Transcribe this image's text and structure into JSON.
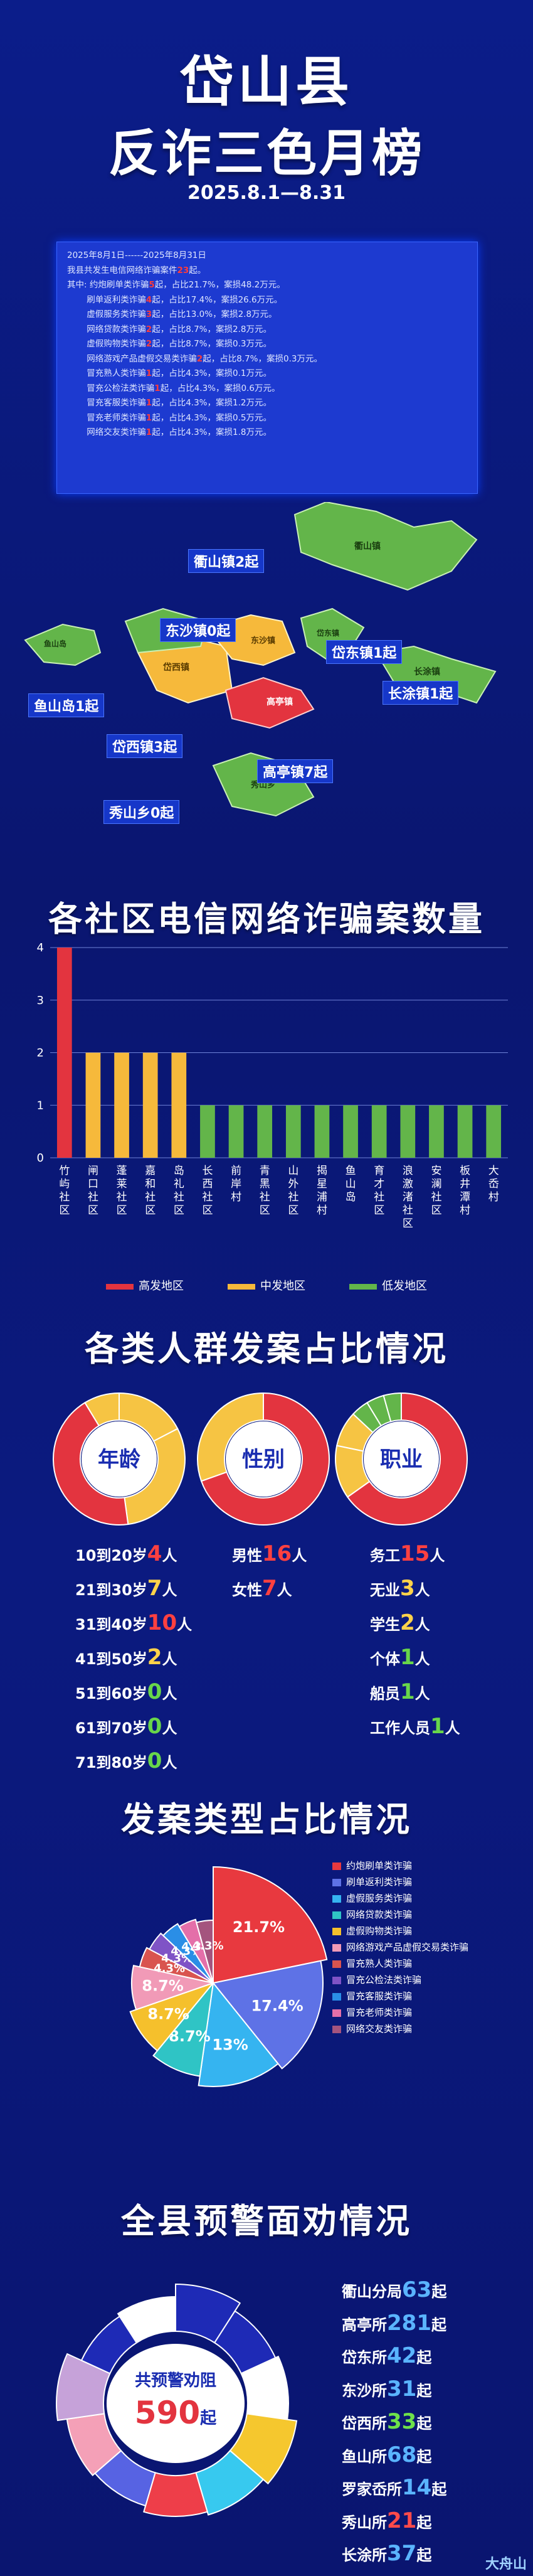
{
  "header": {
    "title_line1": "岱山县",
    "title_line2": "反诈三色月榜",
    "date_range": "2025.8.1—8.31"
  },
  "summary_lines": [
    {
      "pre": "2025年8月1日------2025年8月31日",
      "hl": "",
      "post": ""
    },
    {
      "pre": "我县共发生电信网络诈骗案件",
      "hl": "23",
      "post": "起。"
    },
    {
      "pre": "其中: 约炮刷单类诈骗",
      "hl": "5",
      "post": "起，占比21.7%，案损48.2万元。"
    },
    {
      "pre": "　　 刷单返利类诈骗",
      "hl": "4",
      "post": "起，占比17.4%，案损26.6万元。"
    },
    {
      "pre": "　　 虚假服务类诈骗",
      "hl": "3",
      "post": "起，占比13.0%，案损2.8万元。"
    },
    {
      "pre": "　　 网络贷款类诈骗",
      "hl": "2",
      "post": "起，占比8.7%，案损2.8万元。"
    },
    {
      "pre": "　　 虚假购物类诈骗",
      "hl": "2",
      "post": "起，占比8.7%，案损0.3万元。"
    },
    {
      "pre": "　　 网络游戏产品虚假交易类诈骗",
      "hl": "2",
      "post": "起，占比8.7%，案损0.3万元。"
    },
    {
      "pre": "　　 冒充熟人类诈骗",
      "hl": "1",
      "post": "起，占比4.3%，案损0.1万元。"
    },
    {
      "pre": "　　 冒充公检法类诈骗",
      "hl": "1",
      "post": "起，占比4.3%，案损0.6万元。"
    },
    {
      "pre": "　　 冒充客服类诈骗",
      "hl": "1",
      "post": "起，占比4.3%，案损1.2万元。"
    },
    {
      "pre": "　　 冒充老师类诈骗",
      "hl": "1",
      "post": "起，占比4.3%，案损0.5万元。"
    },
    {
      "pre": "　　 网络交友类诈骗",
      "hl": "1",
      "post": "起，占比4.3%，案损1.8万元。"
    }
  ],
  "map": {
    "callouts": [
      "衢山镇2起",
      "东沙镇0起",
      "岱东镇1起",
      "鱼山岛1起",
      "长涂镇1起",
      "岱西镇3起",
      "高亭镇7起",
      "秀山乡0起"
    ],
    "island_labels": [
      "衢山镇",
      "岱东镇",
      "长涂镇",
      "岱西镇",
      "高亭镇",
      "东沙镇",
      "秀山乡",
      "鱼山岛"
    ]
  },
  "sections": {
    "community_title": "各社区电信网络诈骗案数量",
    "crowd_title": "各类人群发案占比情况",
    "type_title": "发案类型占比情况",
    "warning_title": "全县预警面劝情况"
  },
  "chart_data": [
    {
      "type": "bar",
      "title": "各社区电信网络诈骗案数量",
      "categories": [
        "竹屿社区",
        "闸口社区",
        "蓬莱社区",
        "嘉和社区",
        "岛礼社区",
        "长西社区",
        "前岸村",
        "青黑社区",
        "山外社区",
        "揭星浦村",
        "鱼山岛",
        "育才社区",
        "浪激渚社区",
        "安澜社区",
        "板井潭村",
        "大岙村"
      ],
      "values": [
        4,
        2,
        2,
        2,
        2,
        1,
        1,
        1,
        1,
        1,
        1,
        1,
        1,
        1,
        1,
        1
      ],
      "level": [
        "high",
        "mid",
        "mid",
        "mid",
        "mid",
        "low",
        "low",
        "low",
        "low",
        "low",
        "low",
        "low",
        "low",
        "low",
        "low",
        "low"
      ],
      "ylim": [
        0,
        4
      ],
      "yticks": [
        0,
        1,
        2,
        3,
        4
      ],
      "legend": [
        "高发地区",
        "中发地区",
        "低发地区"
      ],
      "legend_colors": [
        "#e3343f",
        "#f6b93b",
        "#63b54a"
      ],
      "grid": true
    },
    {
      "type": "pie",
      "title": "发案类型占比情况",
      "labels": [
        "约炮刷单类诈骗",
        "刷单返利类诈骗",
        "虚假服务类诈骗",
        "网络贷款类诈骗",
        "虚假购物类诈骗",
        "网络游戏产品虚假交易类诈骗",
        "冒充熟人类诈骗",
        "冒充公检法类诈骗",
        "冒充客服类诈骗",
        "冒充老师类诈骗",
        "网络交友类诈骗"
      ],
      "values": [
        21.7,
        17.4,
        13.0,
        8.7,
        8.7,
        8.7,
        4.3,
        4.3,
        4.3,
        4.3,
        4.3
      ],
      "value_labels": [
        "21.7%",
        "17.4%",
        "13%",
        "8.7%",
        "8.7%",
        "8.7%",
        "4.3%",
        "4.3%",
        "4.3%",
        "4.3%",
        "4.3%"
      ],
      "colors": [
        "#e8393f",
        "#5e72e6",
        "#35b4f0",
        "#2fc4c5",
        "#f5c02c",
        "#f19ab7",
        "#d9544f",
        "#7f53c6",
        "#2a8ee6",
        "#e46fa9",
        "#a4547e"
      ]
    },
    {
      "type": "pie",
      "title": "全县预警面劝情况",
      "labels": [
        "衢山分局",
        "高亭所",
        "岱东所",
        "东沙所",
        "岱西所",
        "鱼山所",
        "罗家岙所",
        "秀山所",
        "长涂所"
      ],
      "values": [
        63,
        281,
        42,
        31,
        33,
        68,
        14,
        21,
        37
      ],
      "total": 590
    }
  ],
  "crowd": {
    "donuts": [
      {
        "label": "年龄",
        "values": [
          4,
          7,
          10,
          2,
          0,
          0,
          0
        ],
        "colors": [
          "#f6c443",
          "#f6c443",
          "#e3343f",
          "#f6c443",
          "#f6c443",
          "#f6c443",
          "#f6c443"
        ]
      },
      {
        "label": "性别",
        "values": [
          16,
          7
        ],
        "colors": [
          "#e3343f",
          "#f6c443"
        ]
      },
      {
        "label": "职业",
        "values": [
          15,
          3,
          2,
          1,
          1,
          1
        ],
        "colors": [
          "#e3343f",
          "#f6c443",
          "#f6c443",
          "#63b54a",
          "#63b54a",
          "#63b54a"
        ]
      }
    ],
    "age": [
      {
        "label": "10到20岁",
        "num": "4",
        "unit": "人",
        "c": "r"
      },
      {
        "label": "21到30岁",
        "num": "7",
        "unit": "人",
        "c": "y"
      },
      {
        "label": "31到40岁",
        "num": "10",
        "unit": "人",
        "c": "r"
      },
      {
        "label": "41到50岁",
        "num": "2",
        "unit": "人",
        "c": "y"
      },
      {
        "label": "51到60岁",
        "num": "0",
        "unit": "人",
        "c": "g"
      },
      {
        "label": "61到70岁",
        "num": "0",
        "unit": "人",
        "c": "g"
      },
      {
        "label": "71到80岁",
        "num": "0",
        "unit": "人",
        "c": "g"
      }
    ],
    "gender": [
      {
        "label": "男性",
        "num": "16",
        "unit": "人",
        "c": "r"
      },
      {
        "label": "女性",
        "num": "7",
        "unit": "人",
        "c": "r"
      }
    ],
    "job": [
      {
        "label": "务工",
        "num": "15",
        "unit": "人",
        "c": "r"
      },
      {
        "label": "无业",
        "num": "3",
        "unit": "人",
        "c": "y"
      },
      {
        "label": "学生",
        "num": "2",
        "unit": "人",
        "c": "y"
      },
      {
        "label": "个体",
        "num": "1",
        "unit": "人",
        "c": "g"
      },
      {
        "label": "船员",
        "num": "1",
        "unit": "人",
        "c": "g"
      },
      {
        "label": "工作人员",
        "num": "1",
        "unit": "人",
        "c": "g"
      }
    ]
  },
  "warning": {
    "center_label": "共预警劝阻",
    "center_num": "590",
    "center_unit": "起",
    "stations": [
      {
        "name": "衢山分局",
        "num": "63",
        "unit": "起",
        "c": "b"
      },
      {
        "name": "高亭所",
        "num": "281",
        "unit": "起",
        "c": "b"
      },
      {
        "name": "岱东所",
        "num": "42",
        "unit": "起",
        "c": "b"
      },
      {
        "name": "东沙所",
        "num": "31",
        "unit": "起",
        "c": "b"
      },
      {
        "name": "岱西所",
        "num": "33",
        "unit": "起",
        "c": "g"
      },
      {
        "name": "鱼山所",
        "num": "68",
        "unit": "起",
        "c": "b"
      },
      {
        "name": "罗家岙所",
        "num": "14",
        "unit": "起",
        "c": "b"
      },
      {
        "name": "秀山所",
        "num": "21",
        "unit": "起",
        "c": "r"
      },
      {
        "name": "长涂所",
        "num": "37",
        "unit": "起",
        "c": "b"
      }
    ],
    "ring_colors": [
      "#1e2ab6",
      "#1e2ab6",
      "#ffffff",
      "#f5c72e",
      "#37c9ef",
      "#ee3e49",
      "#5763e3",
      "#f4a0b7",
      "#c6a2d9",
      "#1e2ab6",
      "#ffffff"
    ]
  },
  "watermark": "大舟山"
}
